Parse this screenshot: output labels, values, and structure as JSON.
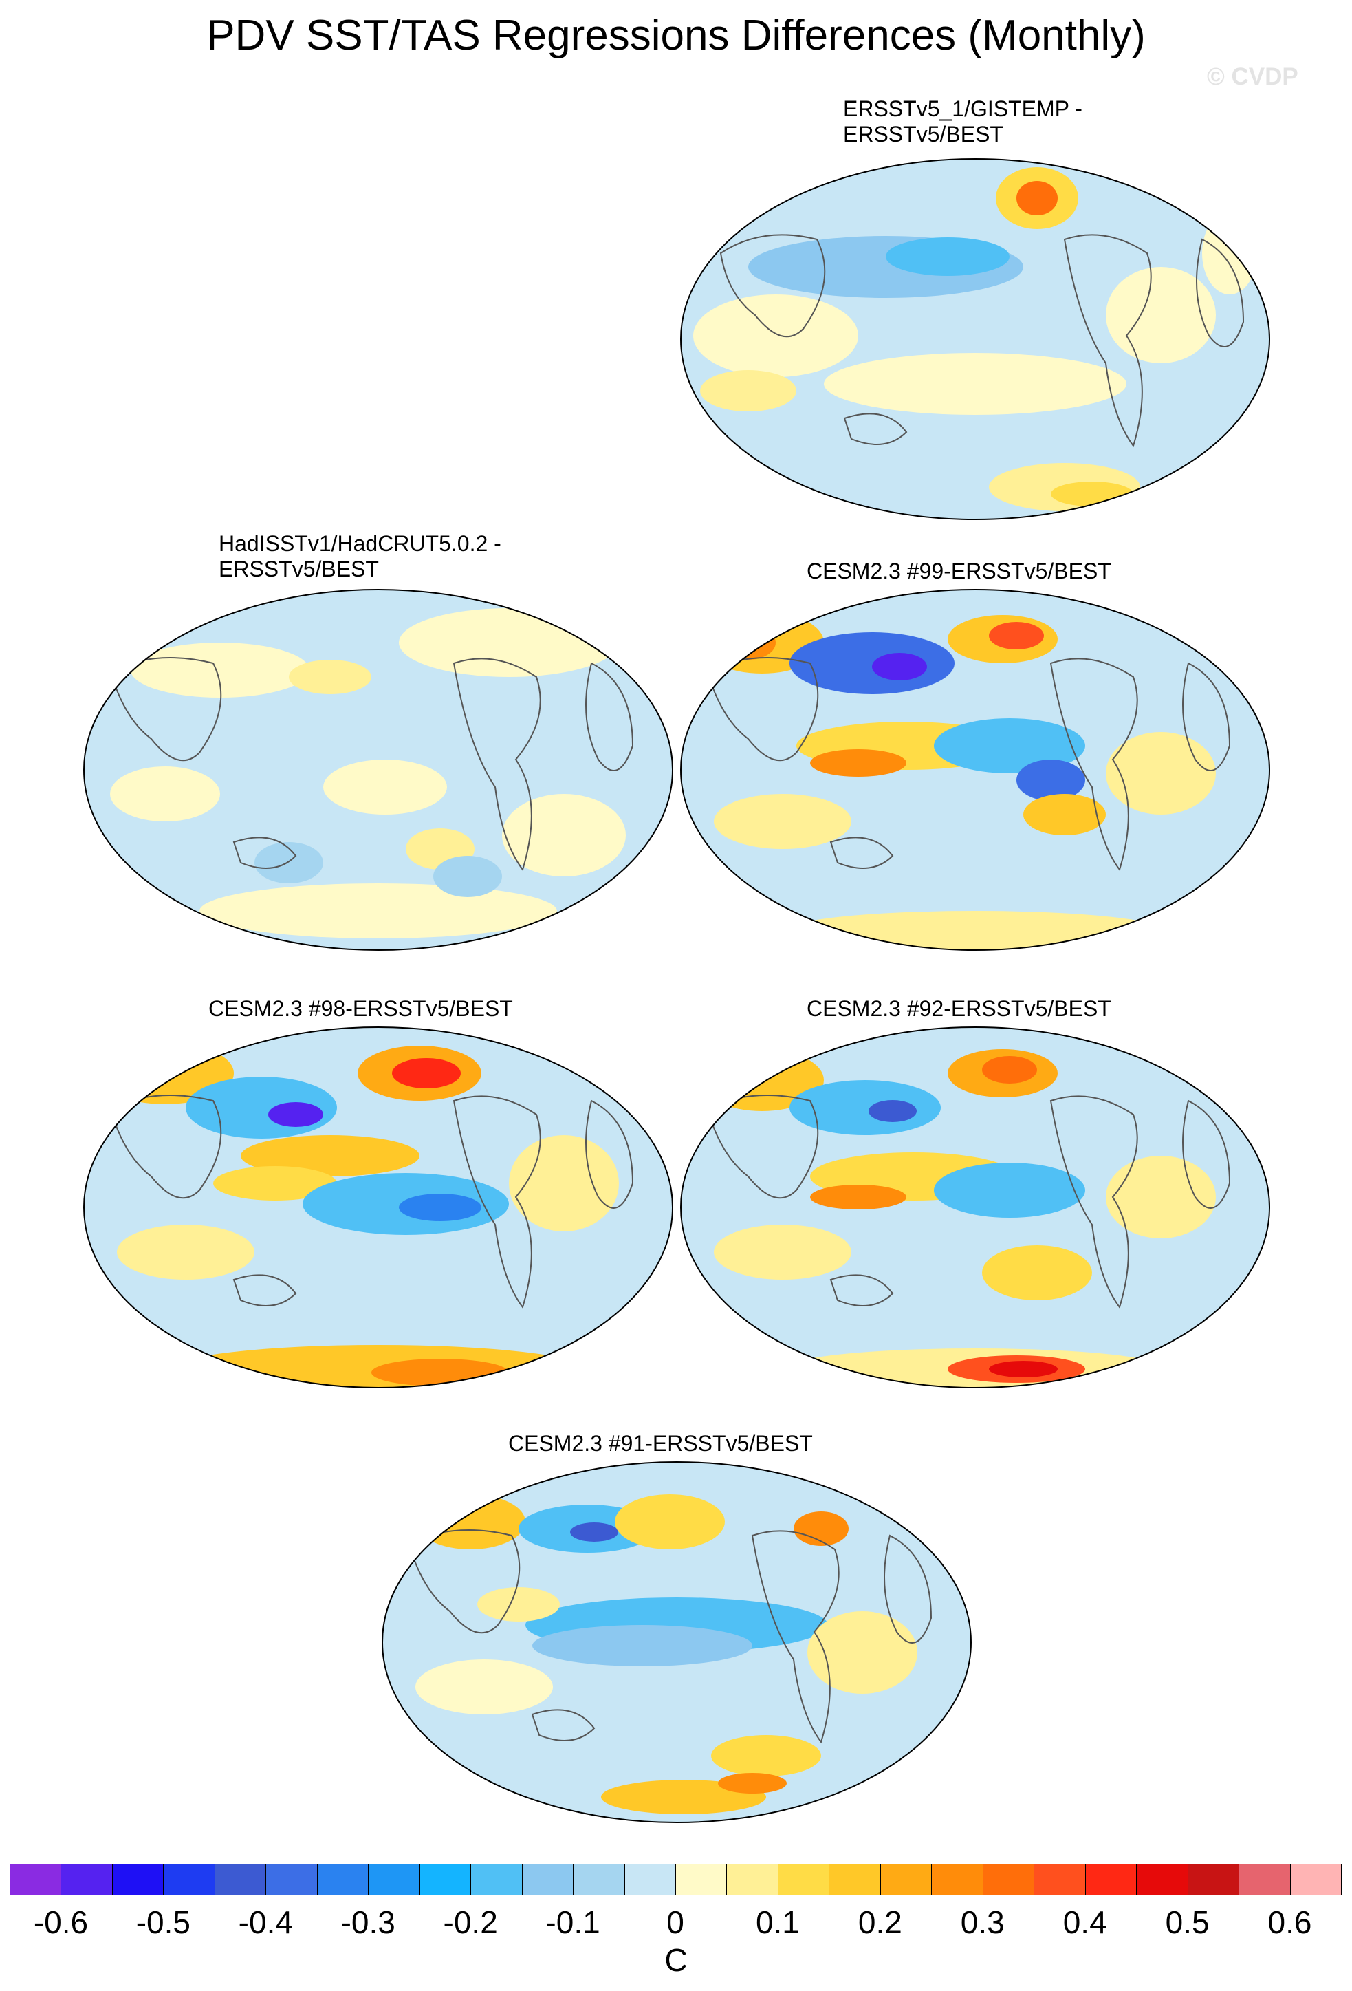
{
  "title": "PDV SST/TAS Regressions Differences (Monthly)",
  "watermark": "© CVDP",
  "panels": [
    {
      "title_line1": "ERSSTv5_1/GISTEMP -",
      "title_line2": "ERSSTv5/BEST"
    },
    {
      "title_line1": "HadISSTv1/HadCRUT5.0.2 -",
      "title_line2": "ERSSTv5/BEST"
    },
    {
      "title_line1": "CESM2.3 #99-ERSSTv5/BEST",
      "title_line2": ""
    },
    {
      "title_line1": "CESM2.3 #98-ERSSTv5/BEST",
      "title_line2": ""
    },
    {
      "title_line1": "CESM2.3 #92-ERSSTv5/BEST",
      "title_line2": ""
    },
    {
      "title_line1": "CESM2.3 #91-ERSSTv5/BEST",
      "title_line2": ""
    }
  ],
  "colorbar": {
    "units": "C",
    "labels": [
      "-0.6",
      "-0.5",
      "-0.4",
      "-0.3",
      "-0.2",
      "-0.1",
      "0",
      "0.1",
      "0.2",
      "0.3",
      "0.4",
      "0.5",
      "0.6"
    ],
    "colors": [
      "#8a2be2",
      "#5522f0",
      "#1e10f5",
      "#1e3cf2",
      "#3c5ad2",
      "#3c6ee6",
      "#2a82f0",
      "#1e96f5",
      "#14b4ff",
      "#50c0f5",
      "#8cc8f0",
      "#a5d5f0",
      "#c8e6f5",
      "#fffac8",
      "#fff096",
      "#ffdc46",
      "#ffc828",
      "#ffaa14",
      "#ff8c0a",
      "#ff6e0a",
      "#ff501e",
      "#ff2814",
      "#e60a0a",
      "#c81414",
      "#e6646e",
      "#ffb4b4"
    ]
  }
}
